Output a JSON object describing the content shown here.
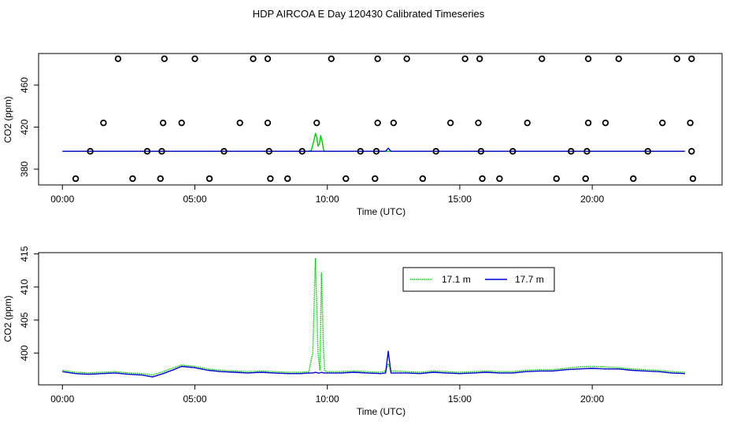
{
  "title": "HDP AIRCOA E  Day 120430  Calibrated Timeseries",
  "colors": {
    "green": "#00cc00",
    "blue": "#0000cc",
    "axis": "#000000"
  },
  "chart_data": [
    {
      "type": "line",
      "xlabel": "Time (UTC)",
      "ylabel": "CO2 (ppm)",
      "x_unit": "hours UTC",
      "xlim": [
        -0.9,
        24.9
      ],
      "ylim": [
        365,
        490
      ],
      "xticks": [
        0,
        5,
        10,
        15,
        20
      ],
      "xtick_labels": [
        "00:00",
        "05:00",
        "10:00",
        "15:00",
        "20:00"
      ],
      "yticks": [
        380,
        420,
        460
      ],
      "ytick_labels": [
        "380",
        "420",
        "460"
      ],
      "series": [
        {
          "color": "#00cc00",
          "x": [
            0,
            9.3,
            9.4,
            9.5,
            9.55,
            9.6,
            9.65,
            9.7,
            9.75,
            9.8,
            9.85,
            9.9,
            10.0,
            23.5
          ],
          "y": [
            397,
            397,
            398,
            408,
            414,
            410,
            402,
            404,
            412,
            407,
            399,
            397,
            397,
            397
          ]
        },
        {
          "color": "#0000cc",
          "x": [
            0,
            12.2,
            12.3,
            12.4,
            23.5
          ],
          "y": [
            397,
            397,
            400,
            397,
            397
          ]
        }
      ],
      "points": {
        "marker": "open-circle",
        "x": [
          0.5,
          1.05,
          1.55,
          2.1,
          2.65,
          3.2,
          3.7,
          3.75,
          3.8,
          3.85,
          4.5,
          5.0,
          5.55,
          6.1,
          6.7,
          7.2,
          7.75,
          7.75,
          7.8,
          7.85,
          8.5,
          9.05,
          9.6,
          10.15,
          10.7,
          11.25,
          11.8,
          11.85,
          11.9,
          11.9,
          12.5,
          13.0,
          13.6,
          14.1,
          14.65,
          15.2,
          15.7,
          15.75,
          15.8,
          15.85,
          16.5,
          17.0,
          17.55,
          18.1,
          18.65,
          19.2,
          19.75,
          19.8,
          19.85,
          19.85,
          20.5,
          21.0,
          21.55,
          22.1,
          22.65,
          23.2,
          23.7,
          23.75,
          23.75,
          23.8
        ],
        "y": [
          371,
          397,
          424,
          485,
          371,
          397,
          371,
          397,
          424,
          485,
          424,
          485,
          371,
          397,
          424,
          485,
          424,
          485,
          397,
          371,
          371,
          397,
          424,
          485,
          371,
          397,
          371,
          397,
          424,
          485,
          424,
          485,
          371,
          397,
          424,
          485,
          424,
          485,
          397,
          371,
          371,
          397,
          424,
          485,
          371,
          397,
          371,
          397,
          424,
          485,
          424,
          485,
          371,
          397,
          424,
          485,
          424,
          485,
          397,
          371
        ]
      }
    },
    {
      "type": "line",
      "xlabel": "Time (UTC)",
      "ylabel": "CO2 (ppm)",
      "x_unit": "hours UTC",
      "xlim": [
        -0.9,
        24.9
      ],
      "ylim": [
        395.2,
        415.2
      ],
      "xticks": [
        0,
        5,
        10,
        15,
        20
      ],
      "xtick_labels": [
        "00:00",
        "05:00",
        "10:00",
        "15:00",
        "20:00"
      ],
      "yticks": [
        400,
        405,
        410,
        415
      ],
      "ytick_labels": [
        "400",
        "405",
        "410",
        "415"
      ],
      "legend": {
        "position": "top-center-right",
        "entries": [
          "17.1 m",
          "17.7 m"
        ]
      },
      "series": [
        {
          "name": "17.1 m",
          "color": "#00cc00",
          "style": "dotted",
          "x": [
            0,
            0.5,
            1,
            1.5,
            2,
            2.5,
            3,
            3.4,
            3.8,
            4.2,
            4.5,
            5,
            5.5,
            6,
            6.5,
            7,
            7.5,
            8,
            8.5,
            9,
            9.3,
            9.45,
            9.55,
            9.65,
            9.72,
            9.78,
            9.85,
            9.9,
            10,
            10.5,
            11,
            11.5,
            12,
            12.2,
            12.3,
            12.4,
            13,
            13.5,
            14,
            14.5,
            15,
            15.5,
            16,
            16.5,
            17,
            17.5,
            18,
            18.5,
            19,
            19.5,
            20,
            20.5,
            21,
            21.5,
            22,
            22.5,
            23,
            23.5
          ],
          "y": [
            397.4,
            397.1,
            397.0,
            397.1,
            397.2,
            397.0,
            396.9,
            396.7,
            397.2,
            397.8,
            398.2,
            398.0,
            397.6,
            397.4,
            397.3,
            397.2,
            397.3,
            397.2,
            397.1,
            397.1,
            397.2,
            400,
            414.3,
            400,
            397.4,
            412.2,
            401,
            397.3,
            397.2,
            397.2,
            397.3,
            397.2,
            397.1,
            397.3,
            398.4,
            397.3,
            397.2,
            397.1,
            397.3,
            397.2,
            397.1,
            397.2,
            397.3,
            397.2,
            397.2,
            397.4,
            397.5,
            397.5,
            397.7,
            397.9,
            398.0,
            397.9,
            397.8,
            397.6,
            397.5,
            397.4,
            397.2,
            397.1
          ]
        },
        {
          "name": "17.7 m",
          "color": "#0000cc",
          "style": "solid",
          "x": [
            0,
            0.5,
            1,
            1.5,
            2,
            2.5,
            3,
            3.4,
            3.8,
            4.2,
            4.5,
            5,
            5.5,
            6,
            6.5,
            7,
            7.5,
            8,
            8.5,
            9,
            9.3,
            9.45,
            9.55,
            9.65,
            9.72,
            9.78,
            9.85,
            9.9,
            10,
            10.5,
            11,
            11.5,
            12,
            12.2,
            12.3,
            12.4,
            13,
            13.5,
            14,
            14.5,
            15,
            15.5,
            16,
            16.5,
            17,
            17.5,
            18,
            18.5,
            19,
            19.5,
            20,
            20.5,
            21,
            21.5,
            22,
            22.5,
            23,
            23.5
          ],
          "y": [
            397.2,
            396.9,
            396.8,
            396.9,
            397.0,
            396.8,
            396.7,
            396.4,
            396.9,
            397.5,
            398.0,
            397.8,
            397.4,
            397.2,
            397.1,
            397.0,
            397.1,
            397.0,
            396.9,
            396.9,
            397.0,
            397.0,
            397.1,
            397.0,
            397.0,
            397.1,
            397.0,
            397.0,
            397.0,
            397.0,
            397.1,
            397.0,
            396.9,
            397.0,
            400.3,
            397.0,
            397.0,
            396.9,
            397.1,
            397.0,
            396.9,
            397.0,
            397.1,
            397.0,
            397.0,
            397.2,
            397.3,
            397.3,
            397.5,
            397.6,
            397.7,
            397.6,
            397.6,
            397.4,
            397.3,
            397.2,
            397.0,
            396.9
          ]
        }
      ]
    }
  ]
}
